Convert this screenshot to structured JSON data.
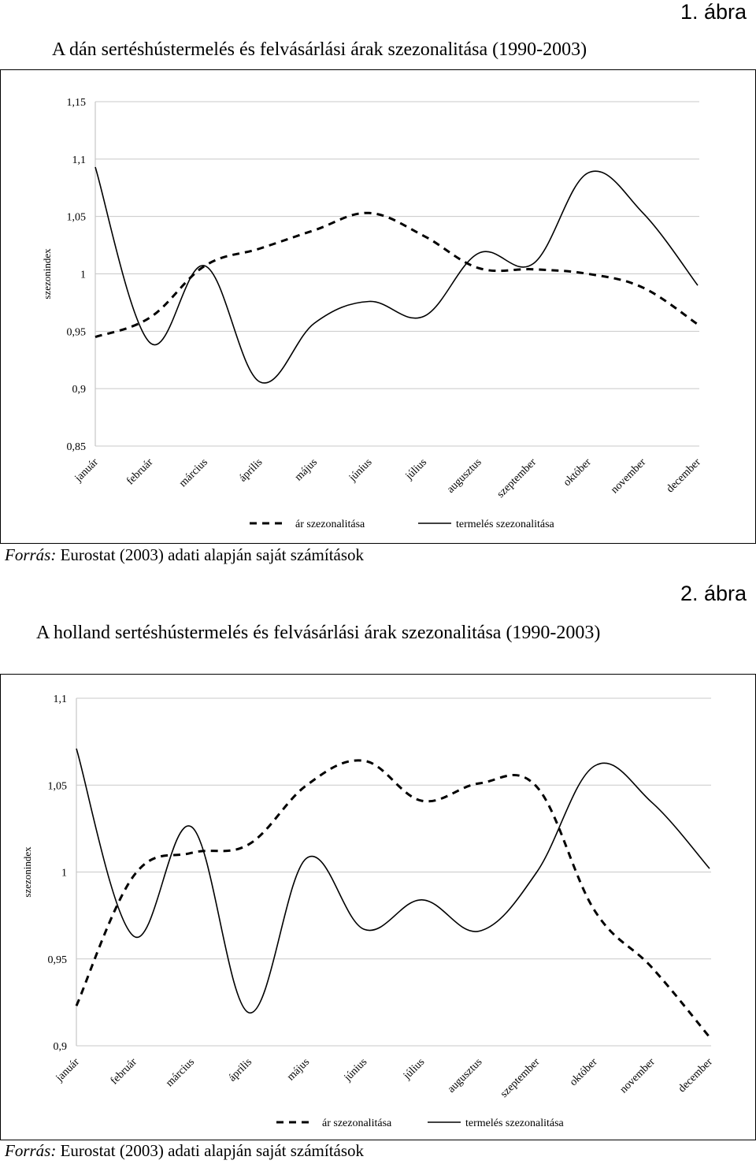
{
  "figures": [
    {
      "label": "1. ábra",
      "title": "A dán sertéshústermelés és felvásárlási árak szezonalitása (1990-2003)",
      "source_prefix": "Forrás:",
      "source_text": " Eurostat (2003) adati alapján saját számítások",
      "chart_data": {
        "type": "line",
        "ylabel": "szezonindex",
        "xlabel": "",
        "categories": [
          "január",
          "február",
          "március",
          "április",
          "május",
          "június",
          "július",
          "augusztus",
          "szeptember",
          "október",
          "november",
          "december"
        ],
        "ylim": [
          0.85,
          1.15
        ],
        "yticks": [
          "0,85",
          "0,9",
          "0,95",
          "1",
          "1,05",
          "1,1",
          "1,15"
        ],
        "ytick_values": [
          0.85,
          0.9,
          0.95,
          1.0,
          1.05,
          1.1,
          1.15
        ],
        "grid": true,
        "legend_position": "bottom",
        "series": [
          {
            "name": "ár szezonalitása",
            "style": "dashed",
            "values": [
              0.945,
              0.962,
              1.007,
              1.022,
              1.038,
              1.053,
              1.033,
              1.005,
              1.004,
              1.0,
              0.988,
              0.956
            ]
          },
          {
            "name": "termelés szezonalitása",
            "style": "solid",
            "values": [
              1.093,
              0.94,
              1.007,
              0.906,
              0.957,
              0.976,
              0.963,
              1.018,
              1.009,
              1.088,
              1.053,
              0.99
            ]
          }
        ]
      }
    },
    {
      "label": "2. ábra",
      "title": "A holland sertéshústermelés és felvásárlási árak szezonalitása (1990-2003)",
      "source_prefix": "Forrás:",
      "source_text": " Eurostat (2003) adati alapján saját számítások",
      "chart_data": {
        "type": "line",
        "ylabel": "szezonindex",
        "xlabel": "",
        "categories": [
          "január",
          "február",
          "március",
          "április",
          "május",
          "június",
          "július",
          "augusztus",
          "szeptember",
          "október",
          "november",
          "december"
        ],
        "ylim": [
          0.9,
          1.1
        ],
        "yticks": [
          "0,9",
          "0,95",
          "1",
          "1,05",
          "1,1"
        ],
        "ytick_values": [
          0.9,
          0.95,
          1.0,
          1.05,
          1.1
        ],
        "grid": true,
        "legend_position": "bottom",
        "series": [
          {
            "name": "ár szezonalitása",
            "style": "dashed",
            "values": [
              0.923,
              0.998,
              1.011,
              1.016,
              1.05,
              1.064,
              1.041,
              1.051,
              1.049,
              0.978,
              0.945,
              0.905
            ]
          },
          {
            "name": "termelés szezonalitása",
            "style": "solid",
            "values": [
              1.071,
              0.963,
              1.026,
              0.919,
              1.008,
              0.967,
              0.984,
              0.966,
              1.0,
              1.061,
              1.04,
              1.002
            ]
          }
        ]
      }
    }
  ]
}
